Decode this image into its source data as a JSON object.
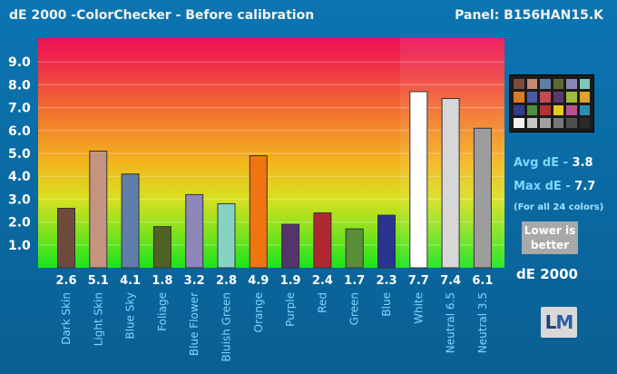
{
  "header": {
    "title": "dE 2000 -ColorChecker - Before calibration",
    "panel": "Panel: B156HAN15.K"
  },
  "stats": {
    "avg_label": "Avg dE -",
    "avg_value": "3.8",
    "max_label": "Max dE -",
    "max_value": "7.7",
    "note": "(For all 24 colors)",
    "lower_line1": "Lower is",
    "lower_line2": "better",
    "unit_label": "dE 2000"
  },
  "logo": {
    "l": "L",
    "m": "M"
  },
  "checker_colors": [
    "#7a4d3c",
    "#c48a74",
    "#5f7fa6",
    "#5a6a36",
    "#8a86b5",
    "#7fc7b9",
    "#d97b25",
    "#4a5aa3",
    "#c24a55",
    "#5a3a6e",
    "#9cba40",
    "#e0a22c",
    "#2f3d8c",
    "#4d8f3f",
    "#b33232",
    "#e8c820",
    "#b8508f",
    "#2a8fb0",
    "#f2f2f2",
    "#c8c8c8",
    "#a0a0a0",
    "#787878",
    "#4f4f4f",
    "#2a2a2a"
  ],
  "chart_data": {
    "type": "bar",
    "ylim": [
      0,
      10
    ],
    "yticks": [
      "1.0",
      "2.0",
      "3.0",
      "4.0",
      "5.0",
      "6.0",
      "7.0",
      "8.0",
      "9.0"
    ],
    "categories": [
      "Dark Skin",
      "Light Skin",
      "Blue Sky",
      "Foliage",
      "Blue Flower",
      "Bluish Green",
      "Orange",
      "Purple",
      "Red",
      "Green",
      "Blue",
      "White",
      "Neutral 6.5",
      "Neutral 3.5"
    ],
    "values": [
      2.6,
      5.1,
      4.1,
      1.8,
      3.2,
      2.8,
      4.9,
      1.9,
      2.4,
      1.7,
      2.3,
      7.7,
      7.4,
      6.1
    ],
    "value_labels": [
      "2.6",
      "5.1",
      "4.1",
      "1.8",
      "3.2",
      "2.8",
      "4.9",
      "1.9",
      "2.4",
      "1.7",
      "2.3",
      "7.7",
      "7.4",
      "6.1"
    ],
    "colors": [
      "#6e4a3c",
      "#c49480",
      "#5f7eaa",
      "#4f6326",
      "#8d86b8",
      "#86d3c4",
      "#f07410",
      "#55336b",
      "#b0282f",
      "#5a8f3a",
      "#28348f",
      "#ffffff",
      "#d7d7d7",
      "#9d9d9d"
    ]
  }
}
